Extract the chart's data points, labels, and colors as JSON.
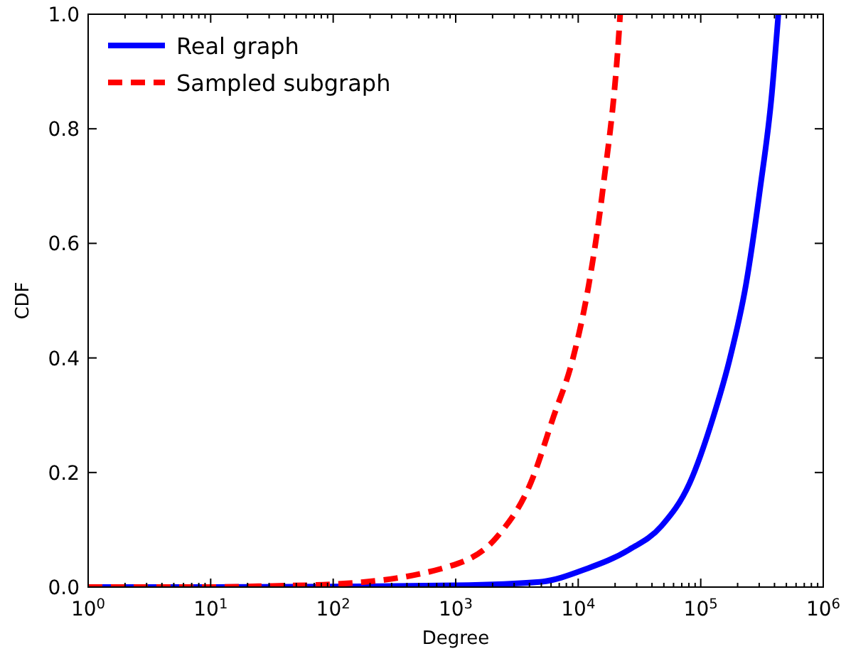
{
  "chart_data": {
    "type": "line",
    "xlabel": "Degree",
    "ylabel": "CDF",
    "log": "x",
    "xlim": [
      1,
      1000000
    ],
    "ylim": [
      0,
      1
    ],
    "xticks": [
      {
        "value": 1,
        "label": "10$^{0}$"
      },
      {
        "value": 10,
        "label": "10$^{1}$"
      },
      {
        "value": 100,
        "label": "10$^{2}$"
      },
      {
        "value": 1000,
        "label": "10$^{3}$"
      },
      {
        "value": 10000,
        "label": "10$^{4}$"
      },
      {
        "value": 100000,
        "label": "10$^{5}$"
      },
      {
        "value": 1000000,
        "label": "10$^{6}$"
      }
    ],
    "yticks": [
      {
        "value": 0,
        "label": "0.0"
      },
      {
        "value": 0.2,
        "label": "0.2"
      },
      {
        "value": 0.4,
        "label": "0.4"
      },
      {
        "value": 0.6,
        "label": "0.6"
      },
      {
        "value": 0.8,
        "label": "0.8"
      },
      {
        "value": 1,
        "label": "1.0"
      }
    ],
    "grid": false,
    "legend": "top left",
    "series": [
      {
        "name": "Real graph",
        "color": "#0000ff",
        "line_style": "solid",
        "x": [
          1,
          10,
          100,
          1000,
          4850,
          11700,
          25900,
          48000,
          81000,
          127000,
          172000,
          234000,
          305000,
          380000,
          430000
        ],
        "values": [
          0,
          0,
          0.001,
          0.003,
          0.009,
          0.032,
          0.065,
          0.107,
          0.181,
          0.298,
          0.397,
          0.528,
          0.695,
          0.86,
          1
        ]
      },
      {
        "name": "Sampled subgraph",
        "color": "#ff0000",
        "line_style": "dashed",
        "x": [
          1,
          10,
          31.6,
          100,
          910,
          2200,
          4080,
          6300,
          9000,
          12200,
          15900,
          21700,
          22000
        ],
        "values": [
          0,
          0,
          0.002,
          0.005,
          0.037,
          0.089,
          0.181,
          0.298,
          0.397,
          0.528,
          0.695,
          0.98,
          1
        ]
      }
    ]
  }
}
